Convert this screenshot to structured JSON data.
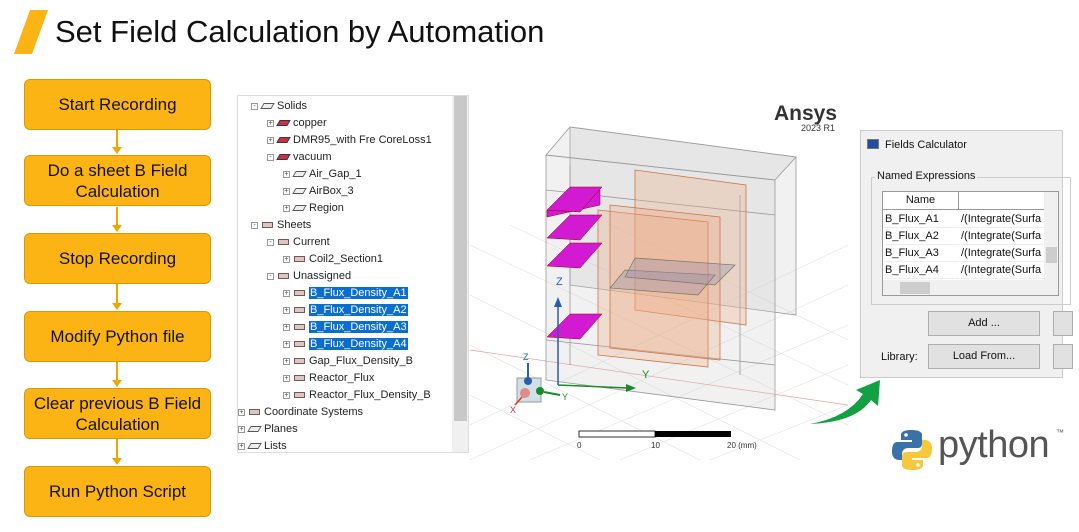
{
  "slide": {
    "title": "Set Field Calculation by Automation",
    "accent": "#fbb414"
  },
  "steps": [
    "Start Recording",
    "Do a sheet B Field Calculation",
    "Stop Recording",
    "Modify Python file",
    "Clear previous B Field Calculation",
    "Run Python Script"
  ],
  "tree": [
    {
      "label": "Solids",
      "level": 1,
      "icon": "obj",
      "sign": "-"
    },
    {
      "label": "copper",
      "level": 2,
      "icon": "solid",
      "sign": "+"
    },
    {
      "label": "DMR95_with Fre CoreLoss1",
      "level": 2,
      "icon": "solid",
      "sign": "+"
    },
    {
      "label": "vacuum",
      "level": 2,
      "icon": "solid",
      "sign": "-"
    },
    {
      "label": "Air_Gap_1",
      "level": 3,
      "icon": "obj",
      "sign": "+"
    },
    {
      "label": "AirBox_3",
      "level": 3,
      "icon": "obj",
      "sign": "+"
    },
    {
      "label": "Region",
      "level": 3,
      "icon": "obj",
      "sign": "+"
    },
    {
      "label": "Sheets",
      "level": 1,
      "icon": "sheet",
      "sign": "-"
    },
    {
      "label": "Current",
      "level": 2,
      "icon": "sheet",
      "sign": "-"
    },
    {
      "label": "Coil2_Section1",
      "level": 3,
      "icon": "sheet",
      "sign": "+"
    },
    {
      "label": "Unassigned",
      "level": 2,
      "icon": "sheet",
      "sign": "-"
    },
    {
      "label": "B_Flux_Density_A1",
      "level": 3,
      "icon": "sheet",
      "sign": "+",
      "selected": true
    },
    {
      "label": "B_Flux_Density_A2",
      "level": 3,
      "icon": "sheet",
      "sign": "+",
      "selected": true
    },
    {
      "label": "B_Flux_Density_A3",
      "level": 3,
      "icon": "sheet",
      "sign": "+",
      "selected": true
    },
    {
      "label": "B_Flux_Density_A4",
      "level": 3,
      "icon": "sheet",
      "sign": "+",
      "selected": true
    },
    {
      "label": "Gap_Flux_Density_B",
      "level": 3,
      "icon": "sheet",
      "sign": "+"
    },
    {
      "label": "Reactor_Flux",
      "level": 3,
      "icon": "sheet",
      "sign": "+"
    },
    {
      "label": "Reactor_Flux_Density_B",
      "level": 3,
      "icon": "sheet",
      "sign": "+"
    },
    {
      "label": "Coordinate Systems",
      "level": 0,
      "icon": "axes",
      "sign": "+"
    },
    {
      "label": "Planes",
      "level": 0,
      "icon": "obj",
      "sign": "+"
    },
    {
      "label": "Lists",
      "level": 0,
      "icon": "obj",
      "sign": "+"
    }
  ],
  "viewport": {
    "brand": "Ansys",
    "version": "2023 R1",
    "axis_z": "Z",
    "axis_y": "Y",
    "axis_x": "X",
    "scale_labels": [
      "0",
      "10",
      "20 (mm)"
    ],
    "sheet_color": "#d21ad2"
  },
  "fields_calculator": {
    "title": "Fields Calculator",
    "group": "Named Expressions",
    "columns": [
      "Name",
      ""
    ],
    "rows": [
      [
        "B_Flux_A1",
        "/(Integrate(Surfa"
      ],
      [
        "B_Flux_A2",
        "/(Integrate(Surfa"
      ],
      [
        "B_Flux_A3",
        "/(Integrate(Surfa"
      ],
      [
        "B_Flux_A4",
        "/(Integrate(Surfa"
      ]
    ],
    "add_label": "Add ...",
    "library_label": "Library:",
    "load_label": "Load From..."
  },
  "python_logo": {
    "text": "python",
    "tm": "™"
  }
}
